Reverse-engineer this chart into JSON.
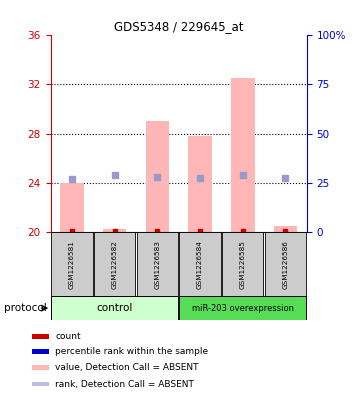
{
  "title": "GDS5348 / 229645_at",
  "samples": [
    "GSM1226581",
    "GSM1226582",
    "GSM1226583",
    "GSM1226584",
    "GSM1226585",
    "GSM1226586"
  ],
  "ylim_left": [
    20,
    36
  ],
  "ylim_right": [
    0,
    100
  ],
  "yticks_left": [
    20,
    24,
    28,
    32,
    36
  ],
  "yticks_right": [
    0,
    25,
    50,
    75,
    100
  ],
  "ytick_labels_right": [
    "0",
    "25",
    "50",
    "75",
    "100%"
  ],
  "bar_bottoms": [
    20,
    20,
    20,
    20,
    20,
    20
  ],
  "bar_tops": [
    24.0,
    20.2,
    29.0,
    27.8,
    32.5,
    20.5
  ],
  "rank_values": [
    24.3,
    24.6,
    24.5,
    24.4,
    24.6,
    24.4
  ],
  "red_dots": [
    20.1,
    20.1,
    20.1,
    20.1,
    20.1,
    20.1
  ],
  "bar_color": "#FFB6B6",
  "rank_color": "#9999CC",
  "red_dot_color": "#CC0000",
  "left_axis_color": "#CC0000",
  "right_axis_color": "#0000CC",
  "protocol_control": "control",
  "protocol_mir": "miR-203 overexpression",
  "control_color": "#CCFFCC",
  "mir_color": "#55DD55",
  "sample_box_color": "#CCCCCC",
  "legend_labels": [
    "count",
    "percentile rank within the sample",
    "value, Detection Call = ABSENT",
    "rank, Detection Call = ABSENT"
  ],
  "legend_colors": [
    "#CC0000",
    "#0000CC",
    "#FFB6B6",
    "#BBBBDD"
  ],
  "protocol_label": "protocol"
}
